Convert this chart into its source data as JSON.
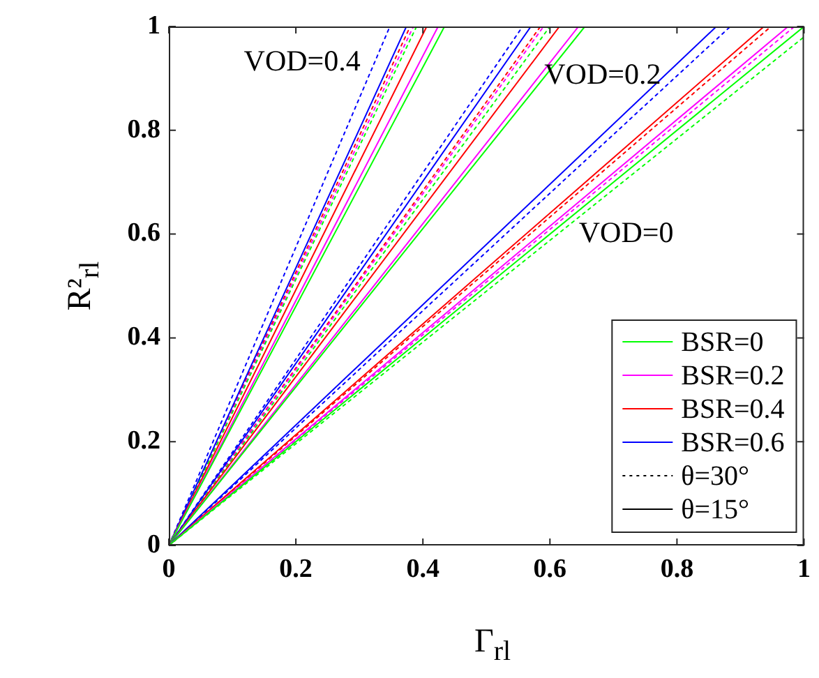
{
  "chart_data": {
    "type": "line",
    "xlabel": "Γ$_{rl}$",
    "ylabel": "R²$_{rl}$",
    "xlim": [
      0,
      1
    ],
    "ylim": [
      0,
      1
    ],
    "xticks": [
      0,
      0.2,
      0.4,
      0.6,
      0.8,
      1
    ],
    "yticks": [
      0,
      0.2,
      0.4,
      0.6,
      0.8,
      1
    ],
    "grid": false,
    "legend": "bottom right",
    "marker": "none",
    "annotations": [
      "VOD=0.4",
      "VOD=0.2",
      "VOD=0"
    ],
    "series": [
      {
        "name": "BSR=0",
        "color": "#00ff00",
        "line_style": "solid",
        "x": [
          0,
          1
        ],
        "values": [
          0,
          1
        ]
      },
      {
        "name": "BSR=0.2",
        "color": "#ff00ff",
        "line_style": "solid",
        "x": [
          0,
          0.975
        ],
        "values": [
          0,
          1
        ]
      },
      {
        "name": "BSR=0.4",
        "color": "#ff0000",
        "line_style": "solid",
        "x": [
          0,
          0.937
        ],
        "values": [
          0,
          1
        ]
      },
      {
        "name": "BSR=0.6",
        "color": "#0000ff",
        "line_style": "solid",
        "x": [
          0,
          0.862
        ],
        "values": [
          0,
          1
        ]
      },
      {
        "color": "#00ff00",
        "line_style": "dotted",
        "x": [
          0,
          1
        ],
        "values": [
          0,
          0.98
        ]
      },
      {
        "color": "#ff00ff",
        "line_style": "dotted",
        "x": [
          0,
          0.985
        ],
        "values": [
          0,
          1
        ]
      },
      {
        "color": "#ff0000",
        "line_style": "dotted",
        "x": [
          0,
          0.948
        ],
        "values": [
          0,
          1
        ]
      },
      {
        "color": "#0000ff",
        "line_style": "dotted",
        "x": [
          0,
          0.884
        ],
        "values": [
          0,
          1
        ]
      },
      {
        "color": "#00ff00",
        "line_style": "solid",
        "x": [
          0,
          0.655
        ],
        "values": [
          0,
          1
        ]
      },
      {
        "color": "#ff00ff",
        "line_style": "solid",
        "x": [
          0,
          0.645
        ],
        "values": [
          0,
          1
        ]
      },
      {
        "color": "#ff0000",
        "line_style": "solid",
        "x": [
          0,
          0.615
        ],
        "values": [
          0,
          1
        ]
      },
      {
        "color": "#0000ff",
        "line_style": "solid",
        "x": [
          0,
          0.57
        ],
        "values": [
          0,
          1
        ]
      },
      {
        "color": "#00ff00",
        "line_style": "dotted",
        "x": [
          0,
          0.6
        ],
        "values": [
          0,
          1
        ]
      },
      {
        "color": "#ff00ff",
        "line_style": "dotted",
        "x": [
          0,
          0.59
        ],
        "values": [
          0,
          1
        ]
      },
      {
        "color": "#ff0000",
        "line_style": "dotted",
        "x": [
          0,
          0.585
        ],
        "values": [
          0,
          1
        ]
      },
      {
        "color": "#0000ff",
        "line_style": "dotted",
        "x": [
          0,
          0.557
        ],
        "values": [
          0,
          1
        ]
      },
      {
        "color": "#00ff00",
        "line_style": "solid",
        "x": [
          0,
          0.434
        ],
        "values": [
          0,
          1
        ]
      },
      {
        "color": "#ff00ff",
        "line_style": "solid",
        "x": [
          0,
          0.424
        ],
        "values": [
          0,
          1
        ]
      },
      {
        "color": "#ff0000",
        "line_style": "solid",
        "x": [
          0,
          0.406
        ],
        "values": [
          0,
          1
        ]
      },
      {
        "color": "#0000ff",
        "line_style": "solid",
        "x": [
          0,
          0.374
        ],
        "values": [
          0,
          1
        ]
      },
      {
        "color": "#00ff00",
        "line_style": "dotted",
        "x": [
          0,
          0.39
        ],
        "values": [
          0,
          1
        ]
      },
      {
        "color": "#ff00ff",
        "line_style": "dotted",
        "x": [
          0,
          0.385
        ],
        "values": [
          0,
          1
        ]
      },
      {
        "color": "#ff0000",
        "line_style": "dotted",
        "x": [
          0,
          0.38
        ],
        "values": [
          0,
          1
        ]
      },
      {
        "color": "#0000ff",
        "line_style": "dotted",
        "x": [
          0,
          0.348
        ],
        "values": [
          0,
          1
        ]
      },
      {
        "name": "θ=30°",
        "color": "#000000",
        "line_style": "dotted"
      },
      {
        "name": "θ=15°",
        "color": "#000000",
        "line_style": "solid"
      }
    ]
  }
}
